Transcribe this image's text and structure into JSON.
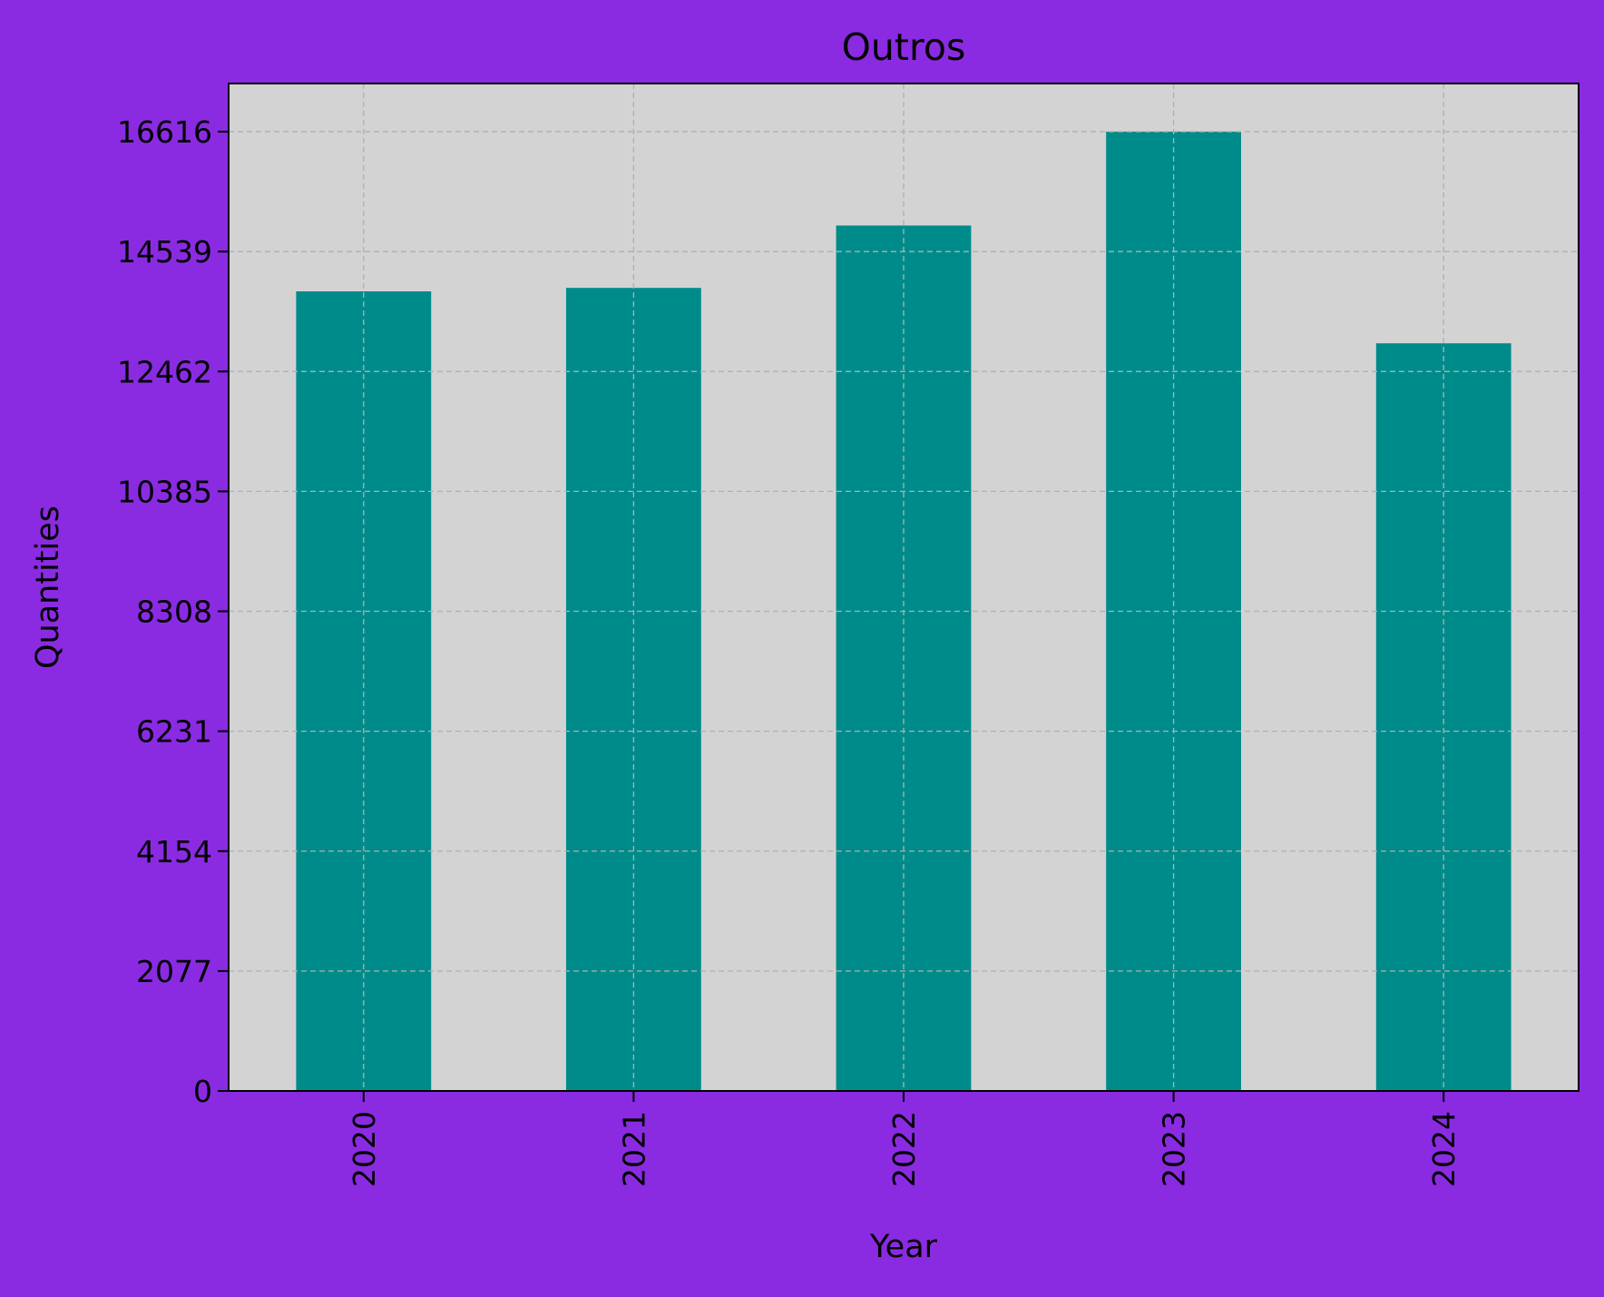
{
  "chart_data": {
    "type": "bar",
    "title": "Outros",
    "xlabel": "Year",
    "ylabel": "Quantities",
    "categories": [
      "2020",
      "2021",
      "2022",
      "2023",
      "2024"
    ],
    "values": [
      13850,
      13910,
      14990,
      16616,
      12950
    ],
    "ylim": [
      0,
      17450
    ],
    "yticks": [
      0,
      2077,
      4154,
      6231,
      8308,
      10385,
      12462,
      14539,
      16616
    ],
    "ytick_labels": [
      "0",
      "2077",
      "4154",
      "6231",
      "8308",
      "10385",
      "12462",
      "14539",
      "16616"
    ],
    "xtick_rotation": "vertical",
    "grid": true,
    "legend": "none",
    "colors": {
      "figure_background": "#8a2be2",
      "plot_background": "#d3d3d3",
      "bar": "#008b8b",
      "grid": "#b0b0b0"
    }
  }
}
